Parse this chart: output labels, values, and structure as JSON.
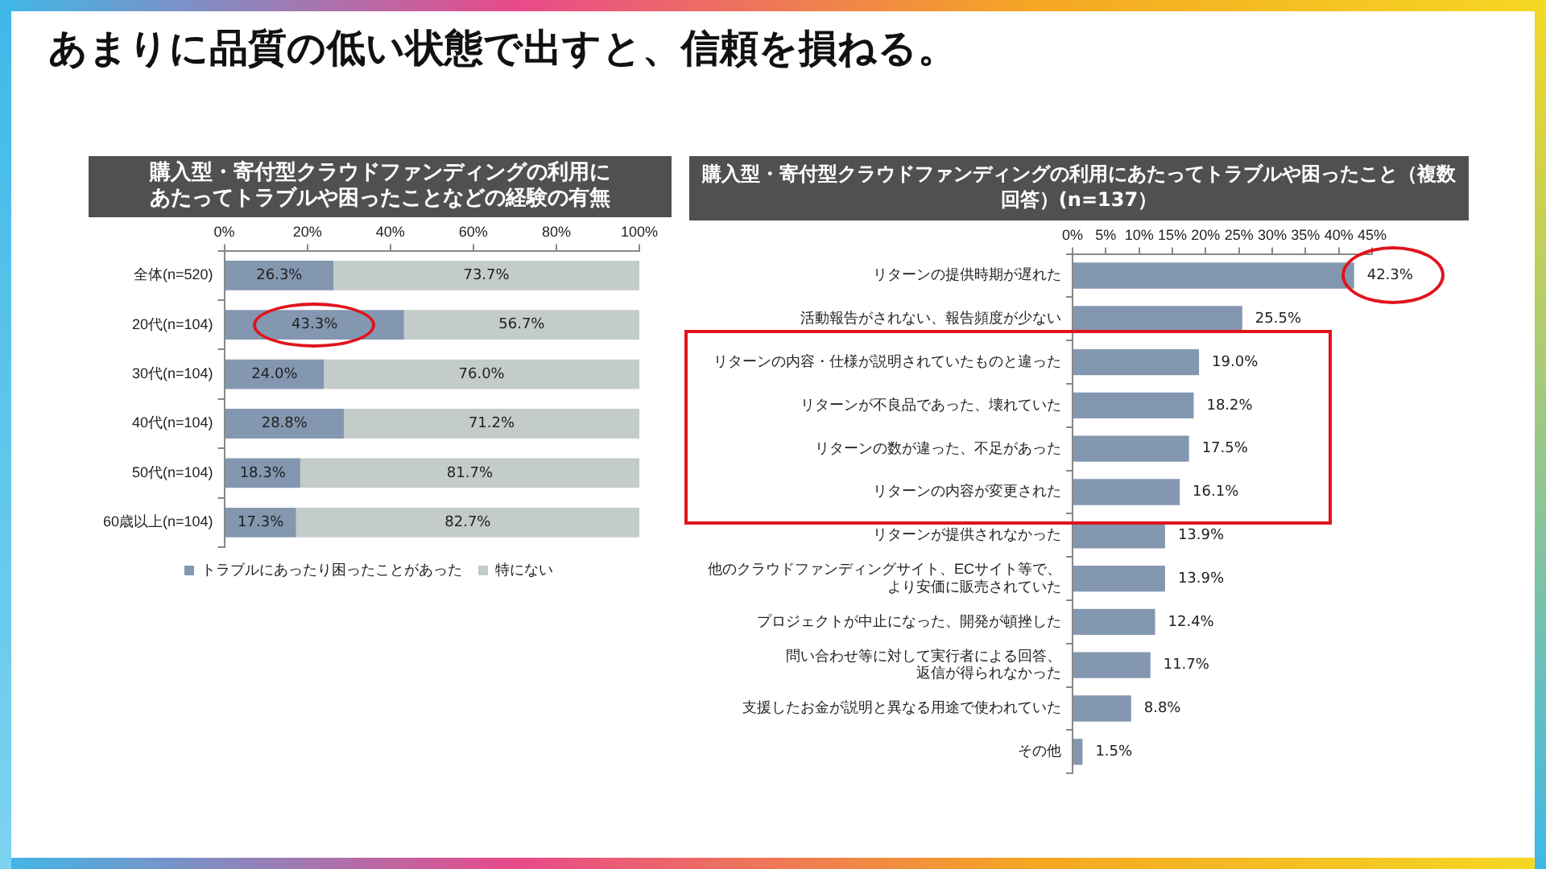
{
  "chart_data": [
    {
      "type": "bar",
      "orientation": "horizontal",
      "stacked": true,
      "title": "購入型・寄付型クラウドファンディングの利用にあたってトラブルや困ったことなどの経験の有無",
      "annotations": [
        "あまりに品質の低い状態で出すと、信頼を損ねる。"
      ],
      "categories": [
        "全体(n=520)",
        "20代(n=104)",
        "30代(n=104)",
        "40代(n=104)",
        "50代(n=104)",
        "60歳以上(n=104)"
      ],
      "series": [
        {
          "name": "トラブルにあったり困ったことがあった",
          "color": "#8497b0",
          "values": [
            26.3,
            43.3,
            24.0,
            28.8,
            18.3,
            17.3
          ],
          "value_labels": [
            "26.3%",
            "43.3%",
            "24.0%",
            "28.8%",
            "18.3%",
            "17.3%"
          ]
        },
        {
          "name": "特にない",
          "color": "#c3ccc8",
          "values": [
            73.7,
            56.7,
            76.0,
            71.2,
            81.7,
            82.7
          ],
          "value_labels": [
            "73.7%",
            "56.7%",
            "76.0%",
            "71.2%",
            "81.7%",
            "82.7%"
          ]
        }
      ],
      "xlim": [
        0,
        100
      ],
      "xticks": [
        {
          "value": 0,
          "label": "0%"
        },
        {
          "value": 20,
          "label": "20%"
        },
        {
          "value": 40,
          "label": "40%"
        },
        {
          "value": 60,
          "label": "60%"
        },
        {
          "value": 80,
          "label": "80%"
        },
        {
          "value": 100,
          "label": "100%"
        }
      ],
      "legend": "bottom"
    },
    {
      "type": "bar",
      "orientation": "horizontal",
      "title": "購入型・寄付型クラウドファンディングの利用にあたってトラブルや困ったこと（複数回答）(n=137）",
      "categories": [
        "リターンの提供時期が遅れた",
        "活動報告がされない、報告頻度が少ない",
        "リターンの内容・仕様が説明されていたものと違った",
        "リターンが不良品であった、壊れていた",
        "リターンの数が違った、不足があった",
        "リターンの内容が変更された",
        "リターンが提供されなかった",
        "他のクラウドファンディングサイト、ECサイト等で、より安価に販売されていた",
        "プロジェクトが中止になった、開発が頓挫した",
        "問い合わせ等に対して実行者による回答、返信が得られなかった",
        "支援したお金が説明と異なる用途で使われていた",
        "その他"
      ],
      "series": [
        {
          "color": "#8497b0",
          "values": [
            42.3,
            25.5,
            19.0,
            18.2,
            17.5,
            16.1,
            13.9,
            13.9,
            12.4,
            11.7,
            8.8,
            1.5
          ],
          "value_labels": [
            "42.3%",
            "25.5%",
            "19.0%",
            "18.2%",
            "17.5%",
            "16.1%",
            "13.9%",
            "13.9%",
            "12.4%",
            "11.7%",
            "8.8%",
            "1.5%"
          ]
        }
      ],
      "xlim": [
        0,
        45
      ],
      "xticks": [
        {
          "value": 0,
          "label": "0%"
        },
        {
          "value": 5,
          "label": "5%"
        },
        {
          "value": 10,
          "label": "10%"
        },
        {
          "value": 15,
          "label": "15%"
        },
        {
          "value": 20,
          "label": "20%"
        },
        {
          "value": 25,
          "label": "25%"
        },
        {
          "value": 30,
          "label": "30%"
        },
        {
          "value": 35,
          "label": "35%"
        },
        {
          "value": 40,
          "label": "40%"
        },
        {
          "value": 45,
          "label": "45%"
        }
      ]
    }
  ]
}
